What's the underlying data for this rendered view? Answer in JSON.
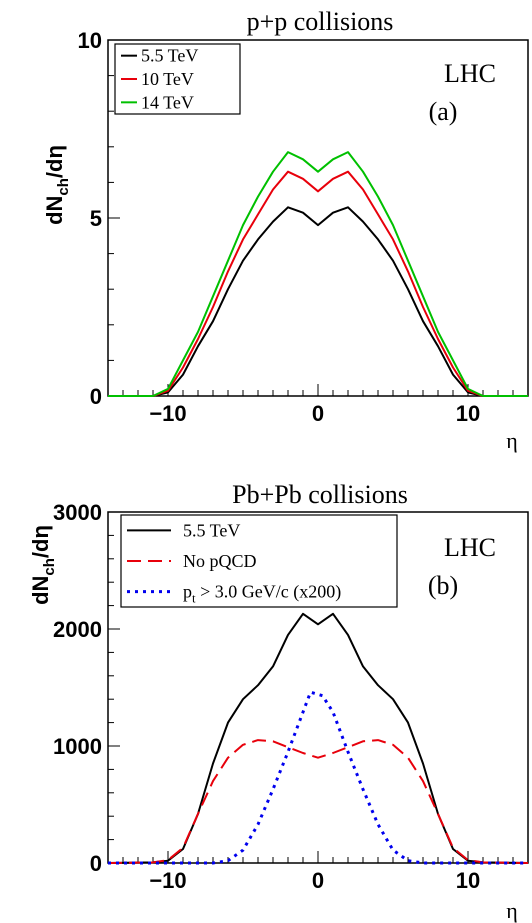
{
  "colors": {
    "black": "#000000",
    "red": "#e8000b",
    "green": "#00c000",
    "blue": "#0000ee"
  },
  "chart_data": [
    {
      "type": "line",
      "title": "p+p collisions",
      "xlabel": "η",
      "ylabel_main": "dN",
      "ylabel_sub": "ch",
      "ylabel_tail": "/dη",
      "annotation": "LHC",
      "panel_label": "(a)",
      "xlim": [
        -14,
        14
      ],
      "ylim": [
        0,
        10
      ],
      "xticks": [
        -10,
        0,
        10
      ],
      "yticks": [
        0,
        5,
        10
      ],
      "legend_position": "top-left",
      "series": [
        {
          "name": "5.5 TeV",
          "color": "#000000",
          "style": "solid",
          "x": [
            -14,
            -11,
            -10,
            -9,
            -8,
            -7,
            -6,
            -5,
            -4,
            -3,
            -2,
            -1,
            0,
            1,
            2,
            3,
            4,
            5,
            6,
            7,
            8,
            9,
            10,
            11,
            14
          ],
          "y": [
            0,
            0,
            0.1,
            0.6,
            1.4,
            2.1,
            3.0,
            3.8,
            4.4,
            4.9,
            5.3,
            5.15,
            4.8,
            5.15,
            5.3,
            4.9,
            4.4,
            3.8,
            3.0,
            2.1,
            1.4,
            0.6,
            0.1,
            0,
            0
          ]
        },
        {
          "name": "10 TeV",
          "color": "#e8000b",
          "style": "solid",
          "x": [
            -14,
            -11,
            -10,
            -9,
            -8,
            -7,
            -6,
            -5,
            -4,
            -3,
            -2,
            -1,
            0,
            1,
            2,
            3,
            4,
            5,
            6,
            7,
            8,
            9,
            10,
            11,
            14
          ],
          "y": [
            0,
            0,
            0.15,
            0.8,
            1.6,
            2.5,
            3.5,
            4.4,
            5.1,
            5.8,
            6.3,
            6.1,
            5.75,
            6.1,
            6.3,
            5.8,
            5.1,
            4.4,
            3.5,
            2.5,
            1.6,
            0.8,
            0.15,
            0,
            0
          ]
        },
        {
          "name": "14 TeV",
          "color": "#00c000",
          "style": "solid",
          "x": [
            -14,
            -11,
            -10,
            -9,
            -8,
            -7,
            -6,
            -5,
            -4,
            -3,
            -2,
            -1,
            0,
            1,
            2,
            3,
            4,
            5,
            6,
            7,
            8,
            9,
            10,
            11,
            14
          ],
          "y": [
            0,
            0,
            0.2,
            1.0,
            1.8,
            2.8,
            3.8,
            4.8,
            5.6,
            6.3,
            6.85,
            6.65,
            6.3,
            6.65,
            6.85,
            6.3,
            5.6,
            4.8,
            3.8,
            2.8,
            1.8,
            1.0,
            0.2,
            0,
            0
          ]
        }
      ]
    },
    {
      "type": "line",
      "title": "Pb+Pb collisions",
      "xlabel": "η",
      "ylabel_main": "dN",
      "ylabel_sub": "ch",
      "ylabel_tail": "/dη",
      "annotation": "LHC",
      "panel_label": "(b)",
      "xlim": [
        -14,
        14
      ],
      "ylim": [
        0,
        3000
      ],
      "xticks": [
        -10,
        0,
        10
      ],
      "yticks": [
        0,
        1000,
        2000,
        3000
      ],
      "legend_position": "top-left",
      "series": [
        {
          "name": "5.5 TeV",
          "color": "#000000",
          "style": "solid",
          "x": [
            -14,
            -11,
            -10,
            -9,
            -8,
            -7,
            -6,
            -5,
            -4,
            -3,
            -2,
            -1,
            0,
            1,
            2,
            3,
            4,
            5,
            6,
            7,
            8,
            9,
            10,
            11,
            14
          ],
          "y": [
            0,
            5,
            20,
            120,
            420,
            850,
            1200,
            1400,
            1520,
            1680,
            1950,
            2130,
            2040,
            2130,
            1950,
            1680,
            1520,
            1400,
            1200,
            850,
            420,
            120,
            20,
            5,
            0
          ]
        },
        {
          "name": "No pQCD",
          "color": "#e8000b",
          "style": "dashed",
          "x": [
            -14,
            -11,
            -10,
            -9,
            -8,
            -7,
            -6,
            -5,
            -4,
            -3,
            -2,
            -1,
            0,
            1,
            2,
            3,
            4,
            5,
            6,
            7,
            8,
            9,
            10,
            11,
            14
          ],
          "y": [
            0,
            5,
            25,
            130,
            420,
            700,
            900,
            1010,
            1050,
            1040,
            990,
            940,
            900,
            940,
            990,
            1040,
            1050,
            1010,
            900,
            700,
            420,
            130,
            25,
            5,
            0
          ]
        },
        {
          "name": "p",
          "name_sub": "t",
          "name_tail": " > 3.0 GeV/c (x200)",
          "color": "#0000ee",
          "style": "dotted",
          "x": [
            -14,
            -7,
            -6,
            -5,
            -4,
            -3,
            -2,
            -1,
            -0.5,
            0.3,
            1,
            2,
            3,
            4,
            5,
            6,
            7,
            14
          ],
          "y": [
            0,
            0,
            20,
            110,
            330,
            630,
            950,
            1290,
            1460,
            1430,
            1290,
            950,
            630,
            330,
            110,
            20,
            0,
            0
          ]
        }
      ]
    }
  ]
}
